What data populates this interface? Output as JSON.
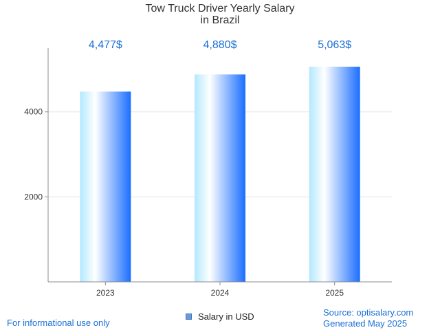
{
  "chart_data": {
    "type": "bar",
    "title_line1": "Tow Truck Driver Yearly Salary",
    "title_line2": "in Brazil",
    "categories": [
      "2023",
      "2024",
      "2025"
    ],
    "series": [
      {
        "name": "Salary in USD",
        "values": [
          4477,
          4880,
          5063
        ]
      }
    ],
    "data_labels": [
      "4,477$",
      "4,880$",
      "5,063$"
    ],
    "yticks": [
      2000,
      4000
    ],
    "ylim": [
      0,
      5500
    ],
    "xlabel": "",
    "ylabel": "",
    "grid": true,
    "legend": "bottom-center"
  },
  "footer": {
    "note": "For informational use only",
    "source": "Source: optisalary.com",
    "generated": "Generated May 2025"
  },
  "colors": {
    "bar_light": "#b3e8ff",
    "bar_white": "#ffffff",
    "bar_dark": "#1a6eff",
    "label": "#1a6fd6",
    "grid": "#e3e3e3",
    "axis": "#8c8c8c"
  }
}
